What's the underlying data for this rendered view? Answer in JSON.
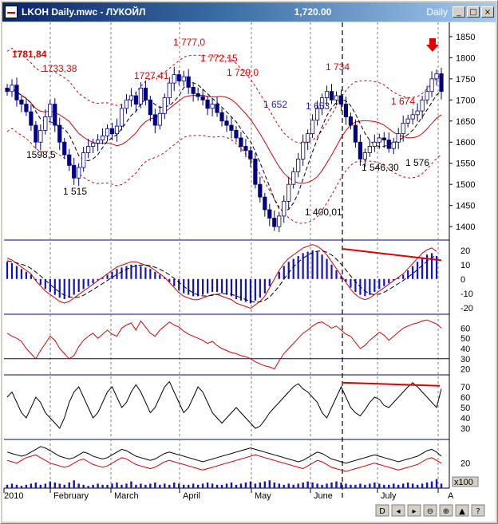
{
  "window": {
    "title": "LKOH Daily.mwc - ЛУКОЙЛ",
    "price": "1,720.00",
    "period": "Daily",
    "buttons": [
      "_",
      "□",
      "×"
    ]
  },
  "chart_data": [
    {
      "type": "candlestick",
      "panel": "price",
      "yticks": [
        1400,
        1450,
        1500,
        1550,
        1600,
        1650,
        1700,
        1750,
        1800,
        1850
      ],
      "ylim": [
        1370,
        1880
      ],
      "x_axis_labels": [
        "2010",
        "February",
        "March",
        "April",
        "May",
        "June",
        "July",
        "A"
      ],
      "annotations_red": [
        "1781,84",
        "1733,38",
        "1727,41",
        "1 777,0",
        "1 772,15",
        "1 729,0",
        "1 734",
        "1 674"
      ],
      "annotations_blue": [
        "1 652",
        "1 653"
      ],
      "annotations_black": [
        "1598,5",
        "1 515",
        "1 400,01",
        "1 546,30",
        "1 576"
      ],
      "closes": [
        1720,
        1735,
        1700,
        1690,
        1672,
        1640,
        1600,
        1628,
        1660,
        1690,
        1640,
        1600,
        1570,
        1545,
        1515,
        1540,
        1575,
        1590,
        1598,
        1605,
        1615,
        1632,
        1620,
        1638,
        1680,
        1700,
        1710,
        1690,
        1728,
        1700,
        1665,
        1640,
        1668,
        1705,
        1740,
        1760,
        1745,
        1755,
        1730,
        1715,
        1708,
        1700,
        1680,
        1690,
        1670,
        1650,
        1640,
        1628,
        1610,
        1590,
        1580,
        1560,
        1500,
        1470,
        1440,
        1420,
        1400,
        1425,
        1460,
        1500,
        1530,
        1560,
        1600,
        1620,
        1652,
        1680,
        1705,
        1720,
        1700,
        1710,
        1690,
        1660,
        1640,
        1600,
        1560,
        1575,
        1590,
        1600,
        1610,
        1605,
        1585,
        1600,
        1620,
        1645,
        1655,
        1665,
        1674,
        1700,
        1720,
        1750,
        1762,
        1720
      ]
    },
    {
      "type": "histogram",
      "panel": "MACD",
      "yticks": [
        -20,
        -10,
        0,
        10,
        20
      ],
      "values": [
        12,
        11,
        9,
        7,
        5,
        3,
        -1,
        -4,
        -7,
        -9,
        -11,
        -13,
        -14,
        -13,
        -11,
        -9,
        -7,
        -5,
        -3,
        -1,
        1,
        3,
        5,
        7,
        8,
        9,
        10,
        10,
        9,
        8,
        7,
        5,
        3,
        1,
        -2,
        -5,
        -8,
        -10,
        -11,
        -12,
        -12,
        -11,
        -10,
        -9,
        -9,
        -10,
        -11,
        -12,
        -14,
        -15,
        -16,
        -17,
        -15,
        -13,
        -10,
        -5,
        0,
        5,
        9,
        12,
        14,
        16,
        18,
        19,
        20,
        19,
        17,
        14,
        10,
        6,
        2,
        -2,
        -6,
        -9,
        -11,
        -12,
        -11,
        -9,
        -7,
        -5,
        -3,
        -1,
        1,
        3,
        6,
        9,
        12,
        15,
        17,
        18,
        16
      ]
    },
    {
      "type": "line",
      "panel": "RSI",
      "yticks": [
        20,
        30,
        40,
        50,
        60
      ],
      "series": [
        {
          "values": [
            55,
            52,
            50,
            47,
            40,
            35,
            30,
            38,
            45,
            52,
            48,
            40,
            35,
            30,
            33,
            42,
            48,
            52,
            55,
            50,
            54,
            58,
            54,
            52,
            60,
            63,
            65,
            58,
            67,
            61,
            55,
            52,
            58,
            62,
            66,
            63,
            61,
            57,
            54,
            52,
            50,
            48,
            45,
            47,
            43,
            40,
            38,
            36,
            35,
            33,
            32,
            30,
            27,
            25,
            23,
            22,
            20,
            28,
            35,
            40,
            45,
            50,
            55,
            58,
            62,
            65,
            66,
            63,
            60,
            62,
            58,
            54,
            52,
            46,
            40,
            43,
            48,
            52,
            56,
            53,
            48,
            52,
            56,
            60,
            62,
            64,
            65,
            67,
            68,
            66,
            64,
            60
          ]
        }
      ]
    },
    {
      "type": "line",
      "panel": "Stochastic",
      "yticks": [
        30,
        40,
        50,
        60,
        70
      ],
      "series": [
        {
          "values": [
            60,
            65,
            55,
            45,
            40,
            50,
            60,
            55,
            45,
            40,
            35,
            30,
            40,
            55,
            65,
            70,
            60,
            50,
            40,
            45,
            55,
            65,
            70,
            60,
            50,
            55,
            65,
            72,
            65,
            55,
            45,
            50,
            60,
            70,
            75,
            65,
            55,
            45,
            50,
            60,
            70,
            65,
            55,
            45,
            40,
            35,
            40,
            45,
            50,
            45,
            40,
            35,
            30,
            32,
            38,
            45,
            50,
            55,
            60,
            65,
            70,
            73,
            68,
            65,
            60,
            55,
            45,
            40,
            50,
            60,
            70,
            60,
            50,
            45,
            42,
            48,
            55,
            60,
            58,
            52,
            50,
            55,
            60,
            65,
            70,
            74,
            70,
            65,
            60,
            55,
            50,
            68
          ]
        }
      ]
    },
    {
      "type": "line",
      "panel": "ADX",
      "yticks": [
        20
      ],
      "series": [
        {
          "values": [
            28,
            27,
            26,
            25,
            26,
            28,
            30,
            32,
            31,
            29,
            27,
            25,
            24,
            23,
            24,
            26,
            28,
            27,
            25,
            24,
            23,
            24,
            26,
            28,
            30,
            29,
            27,
            25,
            24,
            23,
            22,
            23,
            25,
            27,
            28,
            27,
            26,
            25,
            24,
            23,
            22,
            21,
            22,
            23,
            24,
            25,
            26,
            27,
            28,
            29,
            30,
            31,
            30,
            29,
            28,
            27,
            26,
            25,
            24,
            23,
            22,
            21,
            22,
            24,
            26,
            28,
            27,
            25,
            23,
            22,
            21,
            20,
            21,
            22,
            23,
            24,
            25,
            26,
            25,
            24,
            23,
            22,
            21,
            22,
            23,
            24,
            25,
            27,
            29,
            30,
            28,
            25
          ]
        },
        {
          "values": [
            22,
            21,
            20,
            22,
            24,
            25,
            26,
            24,
            22,
            20,
            19,
            18,
            17,
            18,
            20,
            22,
            23,
            21,
            19,
            18,
            17,
            18,
            20,
            22,
            24,
            23,
            21,
            19,
            18,
            17,
            16,
            17,
            19,
            21,
            22,
            21,
            20,
            19,
            18,
            17,
            16,
            15,
            16,
            17,
            18,
            19,
            20,
            21,
            22,
            23,
            24,
            25,
            26,
            25,
            24,
            23,
            22,
            21,
            20,
            19,
            18,
            17,
            16,
            18,
            20,
            22,
            21,
            19,
            17,
            16,
            15,
            14,
            15,
            16,
            17,
            18,
            19,
            20,
            19,
            18,
            17,
            16,
            15,
            16,
            17,
            18,
            19,
            21,
            23,
            24,
            22,
            20
          ]
        }
      ]
    },
    {
      "type": "bar",
      "panel": "Volume",
      "units_label": "x100",
      "values": [
        3,
        4,
        3,
        2,
        3,
        4,
        5,
        3,
        4,
        6,
        5,
        4,
        3,
        5,
        7,
        4,
        3,
        2,
        3,
        4,
        3,
        3,
        4,
        5,
        3,
        4,
        6,
        3,
        4,
        3,
        4,
        5,
        3,
        4,
        3,
        5,
        4,
        3,
        3,
        4,
        3,
        4,
        5,
        4,
        3,
        3,
        4,
        5,
        3,
        4,
        5,
        6,
        4,
        5,
        6,
        7,
        5,
        4,
        3,
        4,
        3,
        4,
        5,
        6,
        5,
        4,
        3,
        4,
        5,
        6,
        5,
        4,
        3,
        3,
        4,
        3,
        4,
        5,
        4,
        3,
        3,
        4,
        3,
        4,
        5,
        4,
        3,
        4,
        5,
        6,
        8,
        4
      ]
    }
  ],
  "navigation": {
    "bottom_buttons": [
      "D",
      "◂",
      "▸",
      "⊖",
      "⊕",
      "▲",
      "?"
    ]
  }
}
